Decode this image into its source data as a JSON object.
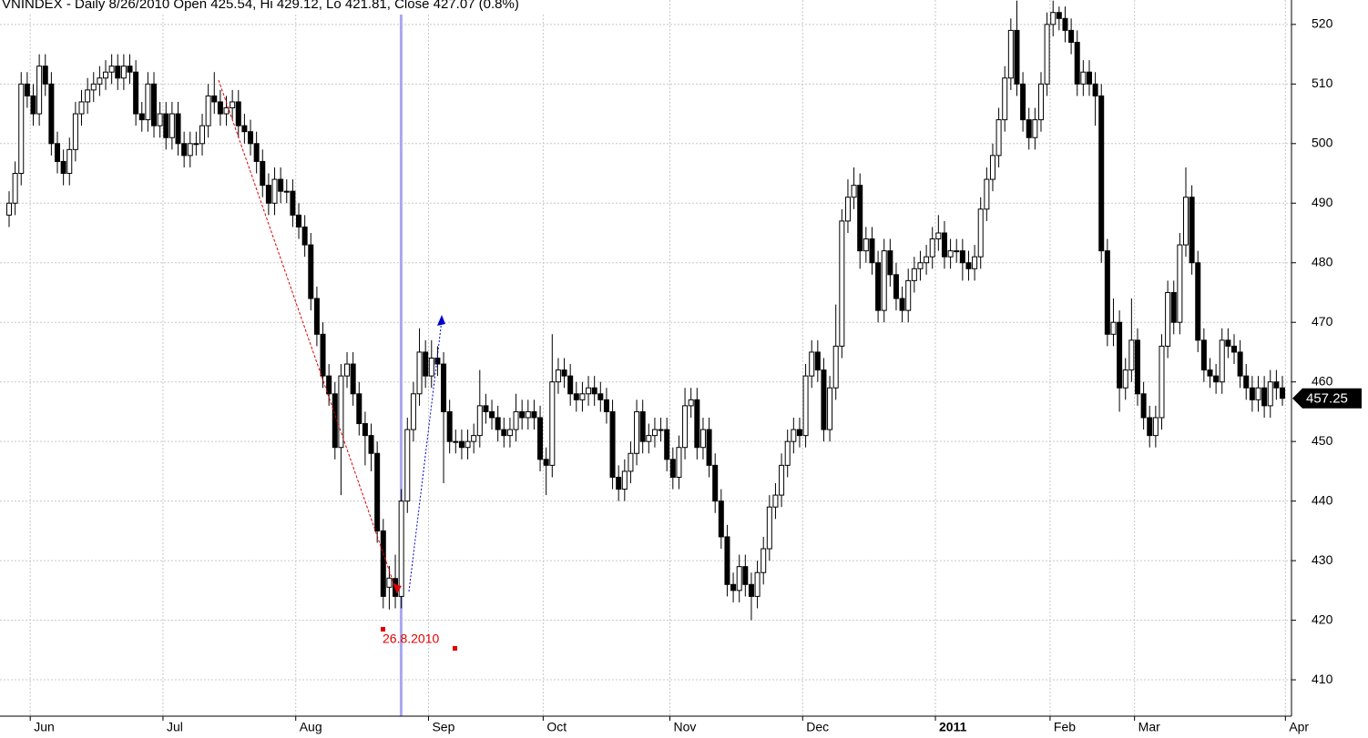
{
  "chart_data": {
    "type": "candlestick",
    "title": "VNINDEX - Daily 8/26/2010 Open 425.54, Hi 429.12, Lo 421.81, Close 427.07 (0.8%)",
    "open": [
      488,
      490,
      495,
      510,
      508,
      505,
      513,
      510,
      500,
      497,
      495,
      499,
      505,
      507,
      509,
      510,
      511,
      512,
      513,
      511,
      513,
      512,
      505,
      504,
      510,
      503,
      505,
      501,
      505,
      500,
      498,
      500,
      500,
      503,
      508,
      507,
      505,
      506,
      507,
      503,
      502,
      500,
      497,
      493,
      490,
      494,
      492,
      492,
      488,
      486,
      483,
      474,
      468,
      461,
      458,
      449,
      461,
      463,
      458,
      453,
      451,
      448,
      435,
      425.54,
      427,
      424,
      440,
      452,
      458,
      465,
      461,
      464,
      463,
      455,
      450,
      450,
      449,
      450,
      451,
      456,
      455,
      454,
      452,
      451,
      452,
      455,
      454,
      455,
      454,
      447,
      446,
      460,
      462,
      461,
      458,
      457,
      458,
      459,
      458,
      457,
      455,
      444,
      442,
      445,
      448,
      455,
      450,
      451,
      452,
      452,
      447,
      444,
      449,
      456,
      457,
      449,
      452,
      446,
      440,
      434,
      426,
      425,
      429,
      426,
      424,
      428,
      432,
      439,
      441,
      446,
      450,
      452,
      451,
      461,
      465,
      462,
      452,
      459,
      466,
      487,
      491,
      493,
      482,
      484,
      480,
      472,
      482,
      478,
      474,
      472,
      477,
      479,
      480,
      481,
      484,
      485,
      481,
      482,
      482,
      480,
      479,
      481,
      489,
      494,
      498,
      504,
      511,
      519,
      510,
      504,
      501,
      504,
      510,
      520,
      522,
      521,
      519,
      517,
      510,
      512,
      510,
      508,
      482,
      468,
      470,
      459,
      462,
      467,
      458,
      454,
      451,
      454,
      466,
      475,
      470,
      483,
      491,
      480,
      467,
      462,
      461,
      460,
      467,
      466,
      465,
      461,
      459,
      457,
      459,
      456,
      460,
      459
    ],
    "high": [
      492,
      497,
      512,
      512,
      510,
      515,
      515,
      512,
      502,
      499,
      501,
      507,
      509,
      511,
      512,
      513,
      514,
      515,
      515,
      515,
      515,
      514,
      507,
      512,
      512,
      507,
      507,
      507,
      507,
      502,
      502,
      502,
      505,
      510,
      512,
      509,
      508,
      509,
      509,
      505,
      504,
      502,
      499,
      495,
      496,
      496,
      494,
      494,
      490,
      488,
      485,
      476,
      470,
      463,
      460,
      463,
      465,
      465,
      460,
      455,
      453,
      450,
      437,
      429.12,
      431,
      442,
      454,
      460,
      469,
      467,
      467,
      466,
      465,
      457,
      452,
      452,
      452,
      453,
      462,
      458,
      457,
      456,
      454,
      454,
      458,
      457,
      457,
      457,
      456,
      449,
      468,
      464,
      464,
      463,
      460,
      460,
      461,
      461,
      460,
      459,
      457,
      446,
      447,
      450,
      457,
      457,
      453,
      454,
      454,
      454,
      449,
      451,
      459,
      459,
      459,
      454,
      454,
      448,
      442,
      436,
      428,
      431,
      431,
      428,
      430,
      434,
      441,
      443,
      448,
      452,
      454,
      454,
      463,
      467,
      467,
      464,
      461,
      473,
      489,
      494,
      496,
      495,
      486,
      486,
      482,
      484,
      484,
      480,
      476,
      479,
      481,
      482,
      483,
      486,
      488,
      487,
      484,
      484,
      484,
      482,
      483,
      491,
      496,
      500,
      506,
      513,
      521,
      524,
      512,
      506,
      506,
      512,
      522,
      524,
      523,
      523,
      521,
      519,
      514,
      514,
      512,
      510,
      484,
      474,
      472,
      464,
      474,
      469,
      460,
      456,
      456,
      468,
      477,
      477,
      485,
      496,
      493,
      482,
      469,
      464,
      463,
      469,
      469,
      468,
      467,
      463,
      461,
      461,
      461,
      462,
      462,
      461
    ],
    "low": [
      486,
      488,
      493,
      506,
      503,
      503,
      508,
      498,
      495,
      493,
      493,
      497,
      503,
      505,
      507,
      508,
      509,
      510,
      509,
      509,
      510,
      503,
      502,
      502,
      501,
      501,
      499,
      499,
      498,
      496,
      496,
      498,
      498,
      501,
      505,
      503,
      503,
      504,
      501,
      500,
      498,
      495,
      491,
      488,
      488,
      490,
      490,
      486,
      484,
      481,
      472,
      466,
      459,
      456,
      447,
      441,
      459,
      456,
      451,
      446,
      445,
      433,
      422,
      421.81,
      422,
      422,
      438,
      450,
      456,
      459,
      459,
      461,
      443,
      448,
      448,
      447,
      447,
      448,
      449,
      453,
      452,
      450,
      449,
      449,
      450,
      452,
      452,
      452,
      445,
      441,
      444,
      458,
      459,
      456,
      455,
      455,
      456,
      456,
      455,
      453,
      442,
      440,
      440,
      443,
      446,
      448,
      448,
      449,
      450,
      445,
      442,
      442,
      447,
      454,
      447,
      447,
      444,
      438,
      432,
      424,
      423,
      423,
      424,
      420,
      422,
      426,
      430,
      437,
      439,
      444,
      448,
      449,
      449,
      459,
      460,
      450,
      450,
      457,
      464,
      485,
      489,
      479,
      480,
      478,
      470,
      470,
      476,
      472,
      470,
      470,
      475,
      477,
      478,
      479,
      482,
      479,
      479,
      480,
      477,
      477,
      477,
      479,
      487,
      492,
      496,
      502,
      509,
      508,
      502,
      499,
      499,
      502,
      508,
      518,
      519,
      517,
      515,
      508,
      508,
      508,
      503,
      480,
      466,
      466,
      455,
      457,
      460,
      456,
      452,
      449,
      449,
      452,
      464,
      468,
      468,
      481,
      478,
      465,
      460,
      459,
      458,
      458,
      464,
      463,
      459,
      457,
      455,
      455,
      454,
      454,
      457,
      456
    ],
    "close": [
      490,
      495,
      510,
      508,
      505,
      513,
      510,
      500,
      497,
      495,
      499,
      505,
      507,
      509,
      510,
      511,
      512,
      513,
      511,
      513,
      512,
      505,
      504,
      510,
      503,
      505,
      501,
      505,
      500,
      498,
      500,
      500,
      503,
      508,
      507,
      505,
      506,
      507,
      503,
      502,
      500,
      497,
      493,
      490,
      494,
      492,
      492,
      488,
      486,
      483,
      474,
      468,
      461,
      458,
      449,
      461,
      463,
      458,
      453,
      451,
      448,
      435,
      424,
      427.07,
      424,
      440,
      452,
      458,
      465,
      461,
      464,
      463,
      455,
      450,
      450,
      449,
      450,
      451,
      456,
      455,
      454,
      452,
      451,
      452,
      455,
      454,
      455,
      454,
      447,
      446,
      460,
      462,
      461,
      458,
      457,
      458,
      459,
      458,
      457,
      455,
      444,
      442,
      445,
      448,
      455,
      450,
      451,
      452,
      452,
      447,
      444,
      449,
      456,
      457,
      449,
      452,
      446,
      440,
      434,
      426,
      425,
      429,
      426,
      424,
      428,
      432,
      439,
      441,
      446,
      450,
      452,
      451,
      461,
      465,
      462,
      452,
      459,
      466,
      487,
      491,
      493,
      482,
      484,
      480,
      472,
      482,
      478,
      474,
      472,
      477,
      479,
      480,
      481,
      484,
      485,
      481,
      482,
      482,
      480,
      479,
      481,
      489,
      494,
      498,
      504,
      511,
      519,
      510,
      504,
      501,
      504,
      510,
      520,
      522,
      521,
      519,
      517,
      510,
      512,
      510,
      508,
      482,
      468,
      470,
      459,
      462,
      467,
      458,
      454,
      451,
      454,
      466,
      475,
      470,
      483,
      491,
      480,
      467,
      462,
      461,
      460,
      467,
      466,
      465,
      461,
      459,
      457,
      459,
      456,
      460,
      459,
      457.25
    ],
    "xlim": [
      -1,
      212
    ],
    "xticks": [
      {
        "value": 3.5,
        "label": "Jun"
      },
      {
        "value": 25.5,
        "label": "Jul"
      },
      {
        "value": 47.5,
        "label": "Aug"
      },
      {
        "value": 69.5,
        "label": "Sep"
      },
      {
        "value": 88.5,
        "label": "Oct"
      },
      {
        "value": 109.5,
        "label": "Nov"
      },
      {
        "value": 131.5,
        "label": "Dec"
      },
      {
        "value": 153.5,
        "label": "2011"
      },
      {
        "value": 172.5,
        "label": "Feb"
      },
      {
        "value": 186.5,
        "label": "Mar"
      },
      {
        "value": 211.5,
        "label": "Apr"
      }
    ],
    "ylim": [
      403.9,
      524.1
    ],
    "yticks": [
      410,
      420,
      430,
      440,
      450,
      460,
      470,
      480,
      490,
      500,
      510,
      520
    ],
    "grid": true,
    "up_color": "#ffffff",
    "down_color": "#000000",
    "last_price": 457.25,
    "annotations": [
      "26.8.2010"
    ]
  }
}
